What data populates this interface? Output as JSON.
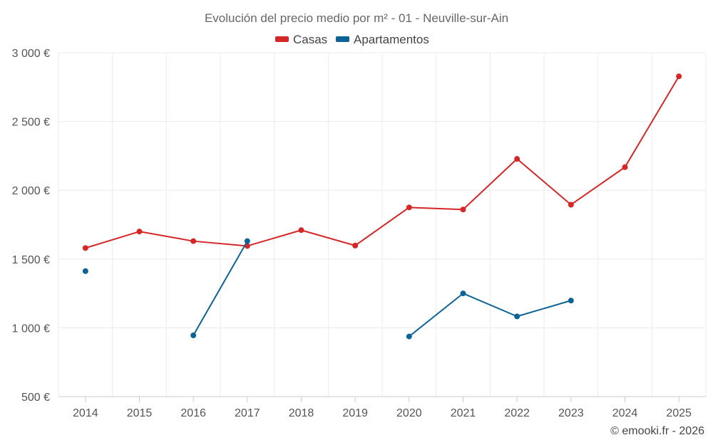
{
  "chart_data": {
    "type": "line",
    "title": "Evolución del precio medio por m² - 01 - Neuville-sur-Ain",
    "categories": [
      "2014",
      "2015",
      "2016",
      "2017",
      "2018",
      "2019",
      "2020",
      "2021",
      "2022",
      "2023",
      "2024",
      "2025"
    ],
    "ylim": [
      500,
      3000
    ],
    "yticks": [
      500,
      1000,
      1500,
      2000,
      2500,
      3000
    ],
    "ytick_labels": [
      "500 €",
      "1 000 €",
      "1 500 €",
      "2 000 €",
      "2 500 €",
      "3 000 €"
    ],
    "legend_position": "top-center",
    "grid": true,
    "series": [
      {
        "name": "Casas",
        "color": "#d62728",
        "values": [
          1580,
          1700,
          1630,
          1595,
          1710,
          1598,
          1875,
          1860,
          2228,
          1895,
          2168,
          2828
        ]
      },
      {
        "name": "Apartamentos",
        "color": "#0e6396",
        "values": [
          1412,
          null,
          945,
          1630,
          null,
          null,
          937,
          1250,
          1083,
          1198,
          null,
          null
        ]
      }
    ]
  },
  "credit": "© emooki.fr - 2026"
}
